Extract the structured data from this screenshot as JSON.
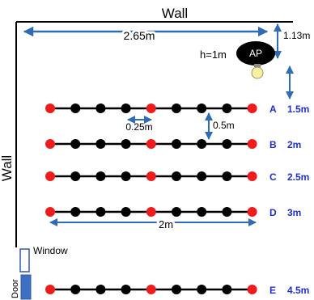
{
  "walls": {
    "top_label": "Wall",
    "left_label": "Wall"
  },
  "access_point": {
    "label": "AP",
    "height_label": "h=1m"
  },
  "dimensions": {
    "wall_to_ap_horizontal": "2.65m",
    "wall_to_ap_vertical": "1.13m",
    "node_spacing": "0.25m",
    "row_spacing": "0.5m",
    "row_length": "2m"
  },
  "openings": {
    "window_label": "Window",
    "door_label": "Door"
  },
  "rows": [
    {
      "letter": "A",
      "distance": "1.5m"
    },
    {
      "letter": "B",
      "distance": "2m"
    },
    {
      "letter": "C",
      "distance": "2.5m"
    },
    {
      "letter": "D",
      "distance": "3m"
    },
    {
      "letter": "E",
      "distance": "4.5m"
    }
  ],
  "node_pattern": [
    "red",
    "black",
    "black",
    "black",
    "red",
    "black",
    "black",
    "black",
    "red"
  ],
  "colors": {
    "anchor_node": "#ee1c1c",
    "sensor_node": "#000000",
    "dimension_arrow": "#2e6db6",
    "distance_text": "#1f2fd0",
    "opening_fill": "#3d6fc3"
  }
}
